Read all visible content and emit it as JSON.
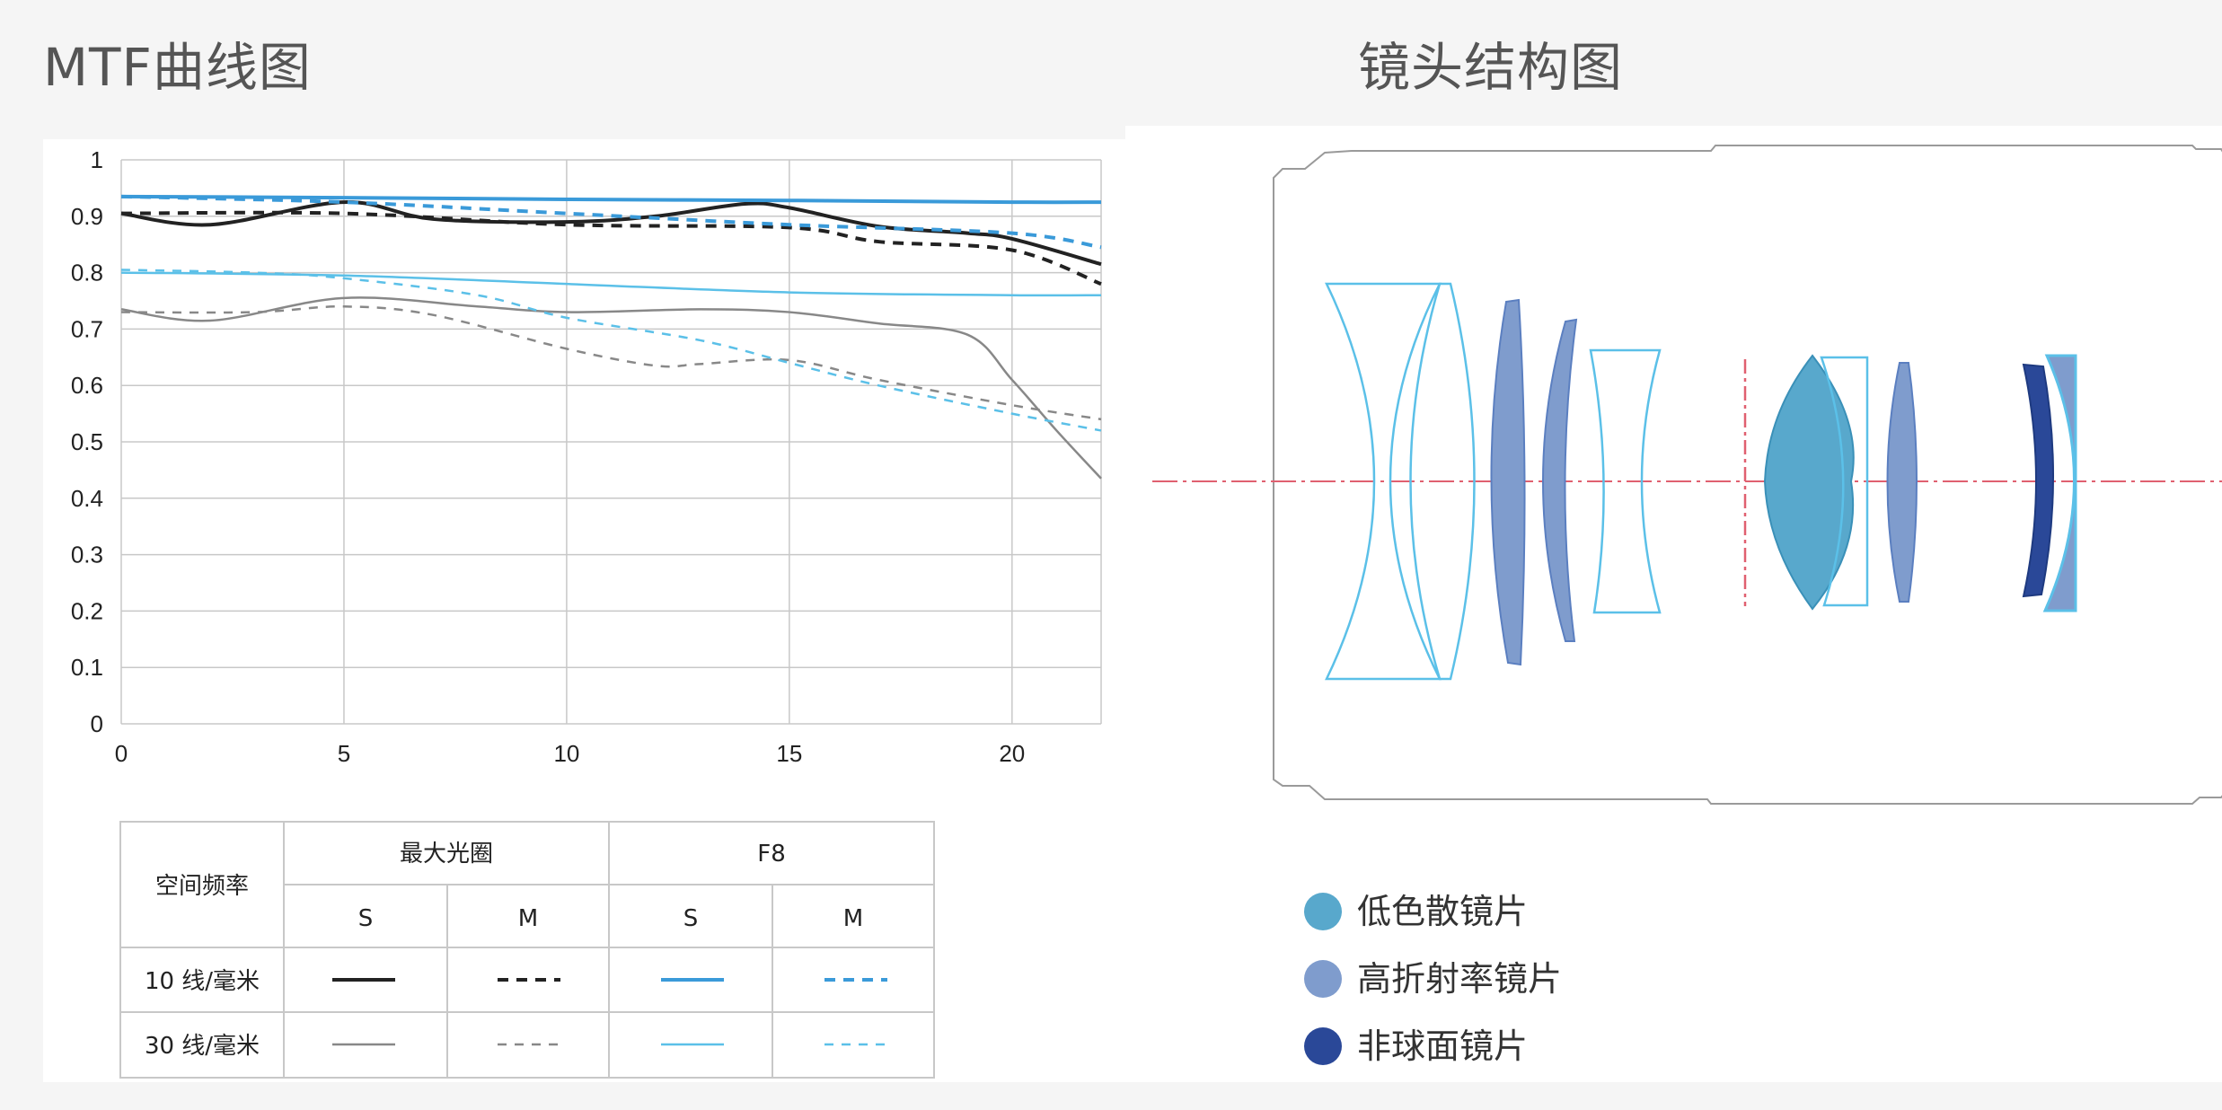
{
  "titles": {
    "mtf": "MTF曲线图",
    "lens": "镜头结构图"
  },
  "chart_data": {
    "type": "line",
    "xlim": [
      0,
      22
    ],
    "ylim": [
      0,
      1
    ],
    "x_ticks": [
      0,
      5,
      10,
      15,
      20
    ],
    "y_ticks": [
      0,
      0.1,
      0.2,
      0.3,
      0.4,
      0.5,
      0.6,
      0.7,
      0.8,
      0.9,
      1
    ],
    "y_tick_labels": [
      "0",
      "0.1",
      "0.2",
      "0.3",
      "0.4",
      "0.5",
      "0.6",
      "0.7",
      "0.8",
      "0.9",
      "1"
    ],
    "grid": true,
    "series": [
      {
        "key": "max-10-s",
        "color": "#222222",
        "width": 4,
        "dash": "",
        "x": [
          0,
          2,
          5,
          7,
          10,
          12,
          14,
          15,
          17,
          19,
          20,
          22
        ],
        "y": [
          0.905,
          0.885,
          0.925,
          0.895,
          0.89,
          0.9,
          0.922,
          0.915,
          0.882,
          0.87,
          0.86,
          0.815
        ]
      },
      {
        "key": "max-10-m",
        "color": "#222222",
        "width": 4,
        "dash": "12 9",
        "x": [
          0,
          5,
          10,
          15,
          17,
          20,
          22
        ],
        "y": [
          0.905,
          0.905,
          0.885,
          0.88,
          0.855,
          0.84,
          0.78
        ]
      },
      {
        "key": "f8-10-s",
        "color": "#3a9ad9",
        "width": 4,
        "dash": "",
        "x": [
          0,
          5,
          10,
          15,
          20,
          22
        ],
        "y": [
          0.935,
          0.933,
          0.93,
          0.928,
          0.925,
          0.925
        ]
      },
      {
        "key": "f8-10-m",
        "color": "#3a9ad9",
        "width": 4,
        "dash": "12 9",
        "x": [
          0,
          5,
          10,
          15,
          20,
          22
        ],
        "y": [
          0.935,
          0.925,
          0.905,
          0.885,
          0.87,
          0.845
        ]
      },
      {
        "key": "max-30-s",
        "color": "#888888",
        "width": 2.5,
        "dash": "",
        "x": [
          0,
          2,
          5,
          8,
          10,
          13,
          15,
          17,
          19,
          20,
          21,
          22
        ],
        "y": [
          0.735,
          0.715,
          0.755,
          0.74,
          0.73,
          0.735,
          0.73,
          0.71,
          0.69,
          0.61,
          0.52,
          0.435
        ]
      },
      {
        "key": "max-30-m",
        "color": "#888888",
        "width": 2.5,
        "dash": "10 9",
        "x": [
          0,
          3,
          5,
          7,
          10,
          12,
          13,
          15,
          17,
          20,
          22
        ],
        "y": [
          0.73,
          0.73,
          0.74,
          0.725,
          0.665,
          0.635,
          0.638,
          0.645,
          0.61,
          0.565,
          0.54
        ]
      },
      {
        "key": "f8-10-s-thin",
        "color": "#5bc0e8",
        "width": 2.5,
        "dash": "",
        "x": [
          0,
          5,
          10,
          15,
          20,
          22
        ],
        "y": [
          0.8,
          0.795,
          0.78,
          0.765,
          0.76,
          0.76
        ]
      },
      {
        "key": "f8-30-m",
        "color": "#5bc0e8",
        "width": 2.5,
        "dash": "10 9",
        "x": [
          0,
          3,
          5,
          8,
          10,
          13,
          15,
          17,
          20,
          22
        ],
        "y": [
          0.805,
          0.8,
          0.79,
          0.76,
          0.72,
          0.68,
          0.64,
          0.6,
          0.55,
          0.52
        ]
      }
    ]
  },
  "legend": {
    "freq_header": "空间频率",
    "max_aperture": "最大光圈",
    "f8": "F8",
    "s": "S",
    "m": "M",
    "row10": "10 线/毫米",
    "row30": "30 线/毫米"
  },
  "lens": {
    "colors": {
      "low_dispersion": "#58a8cc",
      "high_refraction": "#7f9ccd",
      "aspherical": "#2a4898",
      "outline": "#5bc0e8"
    },
    "glass_legend": [
      {
        "label": "低色散镜片",
        "color": "#58a8cc"
      },
      {
        "label": "高折射率镜片",
        "color": "#7f9ccd"
      },
      {
        "label": "非球面镜片",
        "color": "#2a4898"
      }
    ]
  }
}
